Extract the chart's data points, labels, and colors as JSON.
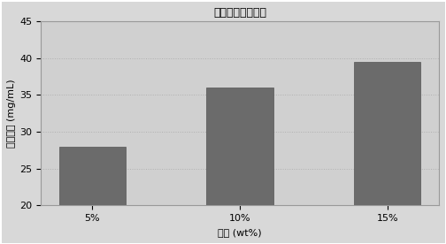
{
  "title": "トレハロース濃度",
  "xlabel": "濃度 (wt%)",
  "ylabel": "結合体量 (mg/mL)",
  "categories": [
    "5%",
    "10%",
    "15%"
  ],
  "values": [
    28.0,
    36.0,
    39.5
  ],
  "ylim": [
    20,
    45
  ],
  "yticks": [
    20,
    25,
    30,
    35,
    40,
    45
  ],
  "bar_color": "#6b6b6b",
  "bar_width": 0.45,
  "fig_bg_color": "#d8d8d8",
  "plot_bg_color": "#d0d0d0",
  "grid_color": "#b0b0b0",
  "title_fontsize": 9,
  "label_fontsize": 8,
  "tick_fontsize": 8
}
